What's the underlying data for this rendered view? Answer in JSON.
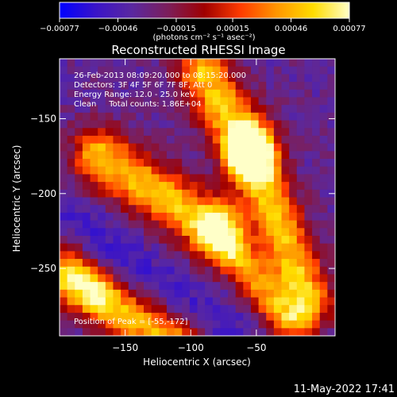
{
  "chart_data": {
    "type": "heatmap",
    "title": "Reconstructed RHESSI Image",
    "xlabel": "Heliocentric X (arcsec)",
    "ylabel": "Heliocentric Y (arcsec)",
    "xlim": [
      -200,
      10
    ],
    "ylim": [
      -295,
      -110
    ],
    "xticks": [
      -150,
      -100,
      -50
    ],
    "xtick_labels": [
      "−150",
      "−100",
      "−50"
    ],
    "yticks": [
      -150,
      -200,
      -250
    ],
    "ytick_labels": [
      "−150",
      "−200",
      "−250"
    ],
    "colorbar": {
      "min": -0.00077,
      "max": 0.00077,
      "ticks": [
        -0.00077,
        -0.00046,
        -0.00015,
        0.00015,
        0.00046,
        0.00077
      ],
      "tick_labels": [
        "−0.00077",
        "−0.00046",
        "−0.00015",
        "0.00015",
        "0.00046",
        "0.00077"
      ],
      "stops": [
        "#0000ff",
        "#3a14c8",
        "#5a28a0",
        "#7c1e5a",
        "#a00000",
        "#ff3c00",
        "#ff9600",
        "#ffdc00",
        "#ffffc8"
      ]
    },
    "annotations": [
      "26-Feb-2013 08:09:20.000 to 08:15:20.000",
      "Detectors: 3F 4F 5F 6F 7F 8F, Att 0",
      "Energy Range: 12.0 - 25.0 keV",
      "Clean     Total counts: 1.86E+04"
    ],
    "peak_label": "Position of Peak = [-55,-172]",
    "peak": [
      -55,
      -172
    ],
    "grid": false,
    "legend": "colorbar-top"
  },
  "colorbar_units": "(photons cm⁻² s⁻¹ asec⁻²)",
  "timestamp": "11-May-2022 17:41"
}
